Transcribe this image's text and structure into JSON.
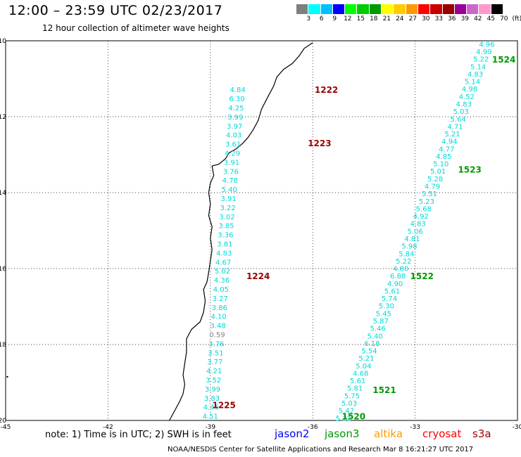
{
  "header": {
    "title": "12:00 – 23:59 UTC 02/23/2017",
    "subtitle": "12 hour collection of altimeter wave heights"
  },
  "legend": {
    "colors": [
      "#7f7f7f",
      "#00ffff",
      "#00bfff",
      "#0000ff",
      "#00ff00",
      "#00cc00",
      "#009900",
      "#ffff00",
      "#ffcc00",
      "#ff9900",
      "#ff0000",
      "#cc0000",
      "#990000",
      "#990099",
      "#cc66cc",
      "#ff99cc",
      "#000000"
    ],
    "ticks": [
      "3",
      "6",
      "9",
      "12",
      "15",
      "18",
      "21",
      "24",
      "27",
      "30",
      "33",
      "36",
      "39",
      "42",
      "45",
      "70",
      "(ft)"
    ]
  },
  "footer": {
    "note": "note: 1) Time is in UTC; 2) SWH is in feet",
    "credit": "NOAA/NESDIS Center for Satellite Applications and Research   Mar  8 16:21:27 UTC 2017",
    "missions": [
      {
        "name": "jason2",
        "color": "#0000ff"
      },
      {
        "name": "jason3",
        "color": "#009900"
      },
      {
        "name": "altika",
        "color": "#ff9900"
      },
      {
        "name": "cryosat",
        "color": "#ff0000"
      },
      {
        "name": "s3a",
        "color": "#990000"
      }
    ]
  },
  "chart_data": {
    "type": "scatter",
    "xlim": [
      -45,
      -30
    ],
    "ylim": [
      -20,
      -10
    ],
    "x_ticks": [
      "-45",
      "-42",
      "-39",
      "-36",
      "-33",
      "-30"
    ],
    "y_ticks": [
      "-10",
      "-12",
      "-14",
      "-16",
      "-18",
      "-20"
    ],
    "grid": true,
    "colors": {
      "cyan": "#00d8d8",
      "gray": "#7f7f7f",
      "pass_s3a": "#990000",
      "pass_jason3": "#009900"
    },
    "tracks": [
      {
        "name": "s3a",
        "values": [
          "4.84",
          "6.30",
          "4.25",
          "3.99",
          "3.97",
          "4.03",
          "3.61",
          "4.29",
          "3.91",
          "3.76",
          "4.78",
          "5.40",
          "3.91",
          "3.22",
          "3.02",
          "3.85",
          "3.36",
          "3.81",
          "4.83",
          "4.67",
          "5.02",
          "4.36",
          "4.05",
          "3.27",
          "3.86",
          "4.10",
          "3.48",
          "0.59",
          "3.76",
          "3.51",
          "3.77",
          "4.21",
          "3.52",
          "3.99",
          "3.83",
          "4.45",
          "4.51"
        ],
        "start": [
          -38.2,
          -11.3
        ],
        "end": [
          -39.0,
          -19.9
        ],
        "pass_labels": [
          {
            "text": "1222",
            "x": -35.6,
            "y": -11.3
          },
          {
            "text": "1223",
            "x": -35.8,
            "y": -12.7
          },
          {
            "text": "1224",
            "x": -37.6,
            "y": -16.2
          },
          {
            "text": "1225",
            "x": -38.6,
            "y": -19.6
          }
        ]
      },
      {
        "name": "jason3",
        "values": [
          "4.96",
          "4.99",
          "5.22",
          "5.14",
          "4.83",
          "5.14",
          "4.98",
          "4.52",
          "4.83",
          "5.03",
          "5.64",
          "4.71",
          "5.21",
          "4.94",
          "4.77",
          "4.85",
          "5.10",
          "5.01",
          "5.28",
          "4.79",
          "5.51",
          "5.23",
          "5.68",
          "4.92",
          "4.83",
          "5.06",
          "4.81",
          "5.98",
          "5.84",
          "5.22",
          "4.80",
          "6.88",
          "4.90",
          "5.61",
          "5.74",
          "5.30",
          "5.45",
          "5.87",
          "5.46",
          "5.40",
          "6.18",
          "5.54",
          "5.21",
          "5.04",
          "4.68",
          "5.61",
          "5.81",
          "5.75",
          "5.03",
          "5.47",
          "5.22"
        ],
        "start": [
          -30.9,
          -10.1
        ],
        "end": [
          -35.1,
          -19.95
        ],
        "pass_labels": [
          {
            "text": "1524",
            "x": -30.4,
            "y": -10.5
          },
          {
            "text": "1523",
            "x": -31.4,
            "y": -13.4
          },
          {
            "text": "1522",
            "x": -32.8,
            "y": -16.2
          },
          {
            "text": "1521",
            "x": -33.9,
            "y": -19.2
          },
          {
            "text": "1520",
            "x": -34.8,
            "y": -19.9
          }
        ]
      }
    ],
    "coastline": [
      [
        -36.0,
        -10.05
      ],
      [
        -36.25,
        -10.2
      ],
      [
        -36.4,
        -10.4
      ],
      [
        -36.6,
        -10.6
      ],
      [
        -36.85,
        -10.75
      ],
      [
        -37.05,
        -10.95
      ],
      [
        -37.15,
        -11.2
      ],
      [
        -37.3,
        -11.45
      ],
      [
        -37.5,
        -11.8
      ],
      [
        -37.6,
        -12.1
      ],
      [
        -37.75,
        -12.35
      ],
      [
        -37.9,
        -12.55
      ],
      [
        -38.05,
        -12.7
      ],
      [
        -38.25,
        -12.85
      ],
      [
        -38.45,
        -12.95
      ],
      [
        -38.55,
        -13.1
      ],
      [
        -38.75,
        -13.25
      ],
      [
        -38.95,
        -13.3
      ],
      [
        -38.9,
        -13.55
      ],
      [
        -39.0,
        -13.75
      ],
      [
        -39.05,
        -14.0
      ],
      [
        -39.0,
        -14.3
      ],
      [
        -39.05,
        -14.6
      ],
      [
        -38.95,
        -14.9
      ],
      [
        -39.0,
        -15.2
      ],
      [
        -38.95,
        -15.5
      ],
      [
        -39.0,
        -15.8
      ],
      [
        -39.05,
        -16.1
      ],
      [
        -39.1,
        -16.35
      ],
      [
        -39.2,
        -16.55
      ],
      [
        -39.15,
        -16.85
      ],
      [
        -39.2,
        -17.15
      ],
      [
        -39.3,
        -17.4
      ],
      [
        -39.55,
        -17.6
      ],
      [
        -39.7,
        -17.85
      ],
      [
        -39.7,
        -18.2
      ],
      [
        -39.75,
        -18.5
      ],
      [
        -39.8,
        -18.8
      ],
      [
        -39.75,
        -19.05
      ],
      [
        -39.8,
        -19.3
      ],
      [
        -39.9,
        -19.5
      ],
      [
        -40.05,
        -19.75
      ],
      [
        -40.2,
        -20.0
      ]
    ]
  }
}
